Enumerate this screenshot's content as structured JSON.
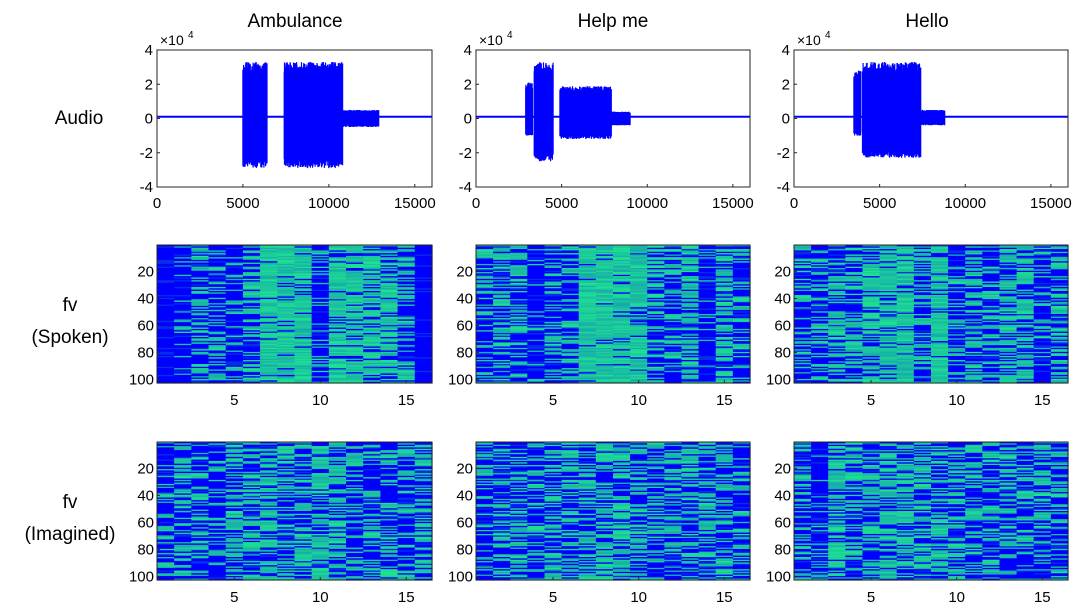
{
  "columns": [
    "Ambulance",
    "Help me",
    "Hello"
  ],
  "rows": [
    {
      "label_lines": [
        "Audio"
      ]
    },
    {
      "label_lines": [
        "fv",
        "(Spoken)"
      ]
    },
    {
      "label_lines": [
        "fv",
        "(Imagined)"
      ]
    }
  ],
  "colors": {
    "waveform": "#0000ff",
    "heat_low": "#0000ff",
    "heat_high": "#1fe38f",
    "axis": "#262626"
  },
  "chart_data": [
    {
      "type": "line",
      "title": "Ambulance",
      "row_label": "Audio",
      "xlim": [
        0,
        16000
      ],
      "ylim": [
        -4,
        4
      ],
      "y_exponent_label": "×10",
      "y_exponent_power": "4",
      "xticks": [
        0,
        5000,
        10000,
        15000
      ],
      "yticks": [
        -4,
        -2,
        0,
        2,
        4
      ],
      "segments": [
        {
          "x": [
            5000,
            6400
          ],
          "ymax": 3.3,
          "ymin": -2.9
        },
        {
          "x": [
            7400,
            10800
          ],
          "ymax": 3.3,
          "ymin": -2.9
        },
        {
          "x": [
            10800,
            12900
          ],
          "ymax": 0.5,
          "ymin": -0.5
        }
      ],
      "baseline": 0.1
    },
    {
      "type": "line",
      "title": "Help me",
      "row_label": "Audio",
      "xlim": [
        0,
        16000
      ],
      "ylim": [
        -4,
        4
      ],
      "y_exponent_label": "×10",
      "y_exponent_power": "4",
      "xticks": [
        0,
        5000,
        10000,
        15000
      ],
      "yticks": [
        -4,
        -2,
        0,
        2,
        4
      ],
      "segments": [
        {
          "x": [
            2900,
            3300
          ],
          "ymax": 2.1,
          "ymin": -1.0
        },
        {
          "x": [
            3400,
            4500
          ],
          "ymax": 3.3,
          "ymin": -2.5
        },
        {
          "x": [
            4900,
            7900
          ],
          "ymax": 1.9,
          "ymin": -1.2
        },
        {
          "x": [
            7900,
            9000
          ],
          "ymax": 0.4,
          "ymin": -0.4
        }
      ],
      "baseline": 0.1
    },
    {
      "type": "line",
      "title": "Hello",
      "row_label": "Audio",
      "xlim": [
        0,
        16000
      ],
      "ylim": [
        -4,
        4
      ],
      "y_exponent_label": "×10",
      "y_exponent_power": "4",
      "xticks": [
        0,
        5000,
        10000,
        15000
      ],
      "yticks": [
        -4,
        -2,
        0,
        2,
        4
      ],
      "segments": [
        {
          "x": [
            3500,
            3900
          ],
          "ymax": 2.8,
          "ymin": -1.0
        },
        {
          "x": [
            4000,
            7400
          ],
          "ymax": 3.3,
          "ymin": -2.3
        },
        {
          "x": [
            7400,
            8800
          ],
          "ymax": 0.5,
          "ymin": -0.4
        }
      ],
      "baseline": 0.1
    },
    {
      "type": "heatmap",
      "title": "Ambulance",
      "row_label": "fv (Spoken)",
      "n_cols": 16,
      "n_rows": 102,
      "xticks": [
        5,
        10,
        15
      ],
      "yticks": [
        20,
        40,
        60,
        80,
        100
      ],
      "column_activation": [
        0.0,
        0.25,
        0.5,
        0.45,
        0.3,
        0.45,
        0.92,
        0.9,
        0.85,
        0.25,
        0.85,
        0.85,
        0.7,
        0.7,
        0.55,
        0.0
      ],
      "seed": 11
    },
    {
      "type": "heatmap",
      "title": "Help me",
      "row_label": "fv (Spoken)",
      "n_cols": 16,
      "n_rows": 102,
      "xticks": [
        5,
        10,
        15
      ],
      "yticks": [
        20,
        40,
        60,
        80,
        100
      ],
      "column_activation": [
        0.3,
        0.55,
        0.5,
        0.15,
        0.5,
        0.45,
        0.95,
        0.9,
        0.9,
        0.85,
        0.55,
        0.4,
        0.6,
        0.15,
        0.65,
        0.3
      ],
      "seed": 23
    },
    {
      "type": "heatmap",
      "title": "Hello",
      "row_label": "fv (Spoken)",
      "n_cols": 16,
      "n_rows": 102,
      "xticks": [
        5,
        10,
        15
      ],
      "yticks": [
        20,
        40,
        60,
        80,
        100
      ],
      "column_activation": [
        0.3,
        0.4,
        0.55,
        0.6,
        0.75,
        0.8,
        0.85,
        0.5,
        0.85,
        0.3,
        0.6,
        0.35,
        0.7,
        0.55,
        0.25,
        0.5
      ],
      "seed": 37
    },
    {
      "type": "heatmap",
      "title": "Ambulance",
      "row_label": "fv (Imagined)",
      "n_cols": 16,
      "n_rows": 102,
      "xticks": [
        5,
        10,
        15
      ],
      "yticks": [
        20,
        40,
        60,
        80,
        100
      ],
      "column_activation": [
        0.3,
        0.4,
        0.45,
        0.35,
        0.6,
        0.55,
        0.6,
        0.65,
        0.65,
        0.7,
        0.6,
        0.5,
        0.4,
        0.55,
        0.45,
        0.5
      ],
      "seed": 41
    },
    {
      "type": "heatmap",
      "title": "Help me",
      "row_label": "fv (Imagined)",
      "n_cols": 16,
      "n_rows": 102,
      "xticks": [
        5,
        10,
        15
      ],
      "yticks": [
        20,
        40,
        60,
        80,
        100
      ],
      "column_activation": [
        0.3,
        0.45,
        0.5,
        0.4,
        0.55,
        0.45,
        0.6,
        0.65,
        0.65,
        0.6,
        0.5,
        0.4,
        0.55,
        0.5,
        0.45,
        0.4
      ],
      "seed": 53
    },
    {
      "type": "heatmap",
      "title": "Hello",
      "row_label": "fv (Imagined)",
      "n_cols": 16,
      "n_rows": 102,
      "xticks": [
        5,
        10,
        15
      ],
      "yticks": [
        20,
        40,
        60,
        80,
        100
      ],
      "column_activation": [
        0.3,
        0.2,
        0.7,
        0.55,
        0.5,
        0.6,
        0.55,
        0.65,
        0.5,
        0.55,
        0.4,
        0.5,
        0.55,
        0.45,
        0.5,
        0.45
      ],
      "seed": 67
    }
  ]
}
